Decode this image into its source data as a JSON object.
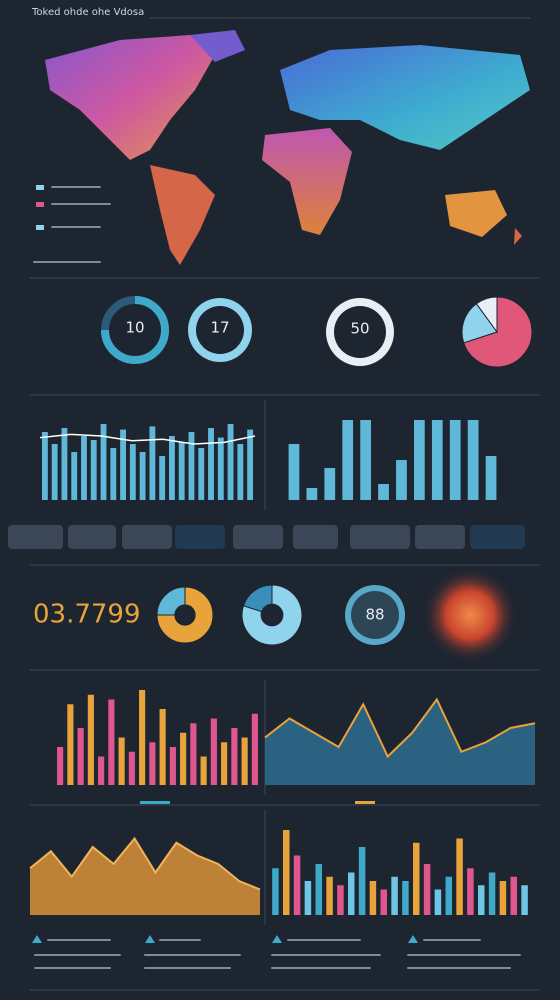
{
  "title": "Toked ohde ohe Vdosa",
  "stats": {
    "gauge_a": "10",
    "gauge_b": "17",
    "gauge_c": "50",
    "gauge_d": "88",
    "big_number": "03.7799"
  },
  "chart_data": [
    {
      "type": "bar",
      "color": "#5fb8d8",
      "ylim": [
        0,
        100
      ],
      "values": [
        85,
        70,
        90,
        60,
        80,
        75,
        95,
        65,
        88,
        70,
        60,
        92,
        55,
        80,
        72,
        85,
        65,
        90,
        78,
        95,
        70,
        88
      ]
    },
    {
      "type": "line",
      "color": "#ffffff",
      "ylim": [
        0,
        100
      ],
      "values": [
        78,
        82,
        80,
        74,
        76,
        70,
        72,
        80
      ]
    },
    {
      "type": "bar",
      "color": "#5fb8d8",
      "ylim": [
        0,
        100
      ],
      "values": [
        70,
        15,
        40,
        100,
        100,
        20,
        50,
        100,
        100,
        100,
        100,
        55
      ]
    },
    {
      "type": "bar",
      "ylim": [
        0,
        100
      ],
      "colors": [
        "#e0578f",
        "#e8a33a",
        "#e0578f",
        "#e8a33a",
        "#e0578f",
        "#e0578f",
        "#e8a33a",
        "#e0578f",
        "#e8a33a",
        "#e0578f",
        "#e8a33a",
        "#e0578f",
        "#e8a33a",
        "#e0578f",
        "#e8a33a",
        "#e0578f",
        "#e8a33a",
        "#e0578f",
        "#e8a33a",
        "#e0578f"
      ],
      "values": [
        40,
        85,
        60,
        95,
        30,
        90,
        50,
        35,
        100,
        45,
        80,
        40,
        55,
        65,
        30,
        70,
        45,
        60,
        50,
        75
      ]
    },
    {
      "type": "area",
      "color": "#2f6d8f",
      "line_color": "#e8a33a",
      "ylim": [
        0,
        100
      ],
      "values": [
        50,
        70,
        55,
        40,
        85,
        30,
        55,
        90,
        35,
        45,
        60,
        65
      ]
    },
    {
      "type": "area",
      "color": "#d9923a",
      "line_color": "#f2b45a",
      "ylim": [
        0,
        100
      ],
      "values": [
        55,
        75,
        45,
        80,
        60,
        90,
        50,
        85,
        70,
        60,
        40,
        30
      ]
    },
    {
      "type": "bar",
      "ylim": [
        0,
        100
      ],
      "colors": [
        "#3fa9c9",
        "#e8a33a",
        "#e0578f",
        "#6ec6e6",
        "#3fa9c9",
        "#e8a33a",
        "#e0578f",
        "#6ec6e6",
        "#3fa9c9",
        "#e8a33a",
        "#e0578f",
        "#6ec6e6",
        "#3fa9c9",
        "#e8a33a",
        "#e0578f",
        "#6ec6e6",
        "#3fa9c9",
        "#e8a33a",
        "#e0578f",
        "#6ec6e6",
        "#3fa9c9",
        "#e8a33a",
        "#e0578f",
        "#6ec6e6"
      ],
      "values": [
        55,
        100,
        70,
        40,
        60,
        45,
        35,
        50,
        80,
        40,
        30,
        45,
        40,
        85,
        60,
        30,
        45,
        90,
        55,
        35,
        50,
        40,
        45,
        35
      ]
    },
    {
      "type": "pie",
      "colors": [
        "#e0577a",
        "#8fd3ec",
        "#e9eef5"
      ],
      "values": [
        70,
        20,
        10
      ]
    },
    {
      "type": "donut",
      "colors": [
        "#e8a33a",
        "#5fb8d8"
      ],
      "values": [
        75,
        25
      ]
    },
    {
      "type": "donut",
      "colors": [
        "#8fd3ec",
        "#3a8fb8"
      ],
      "values": [
        80,
        20
      ]
    }
  ]
}
